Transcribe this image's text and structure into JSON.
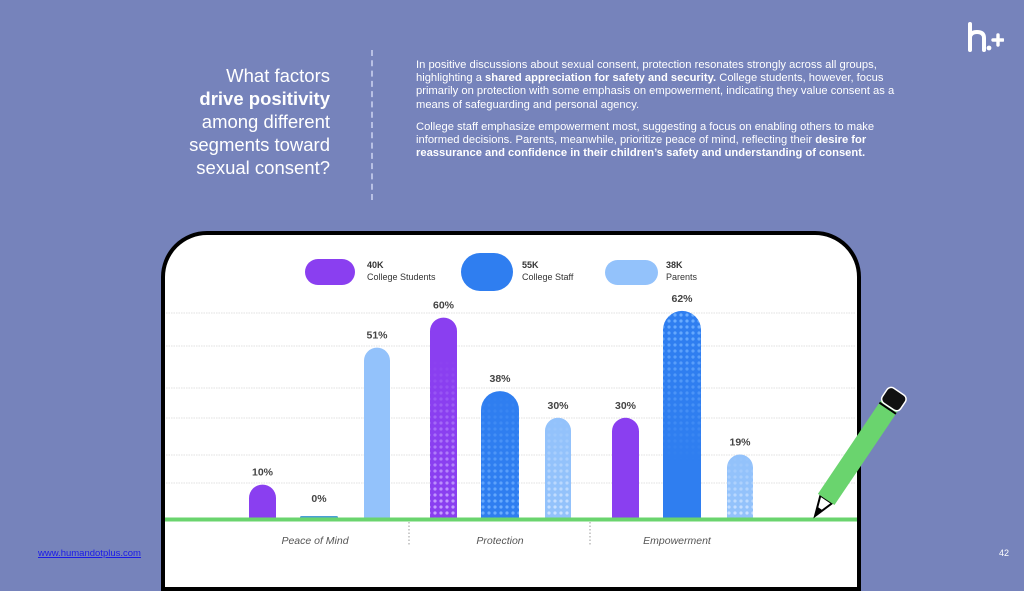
{
  "brand": {
    "logo_icon": "h-plus-logo-icon"
  },
  "question": {
    "line1": "What factors",
    "line2_bold": "drive positivity",
    "line3": "among different",
    "line4": "segments toward",
    "line5": "sexual consent?"
  },
  "summary": {
    "p1_a": "In positive discussions about sexual consent, protection resonates strongly across all groups, highlighting a ",
    "p1_bold": "shared appreciation for safety and security.",
    "p1_b": " College students, however, focus primarily on protection with some emphasis on empowerment, indicating they value consent as a means of safeguarding and personal agency.",
    "p2_a": "College staff emphasize empowerment most, suggesting a focus on enabling others to make informed decisions. Parents, meanwhile, prioritize peace of mind, reflecting their ",
    "p2_bold": "desire for reassurance and confidence in their children’s safety and understanding of consent."
  },
  "footer": {
    "link": "www.humandotplus.com",
    "page_number": "42"
  },
  "colors": {
    "background": "#7683bb",
    "college_students": "#8a3ff0",
    "college_staff": "#2f7ef0",
    "parents": "#93c2fb",
    "baseline": "#6ad46e",
    "pencil": "#6ad46e"
  },
  "chart_data": {
    "type": "bar",
    "title": "",
    "xlabel": "",
    "ylabel": "",
    "ylim": [
      0,
      62
    ],
    "grid": true,
    "legend_position": "top",
    "categories": [
      "Peace of Mind",
      "Protection",
      "Empowerment"
    ],
    "series": [
      {
        "name": "College Students",
        "count_label": "40K",
        "color": "#8a3ff0",
        "values": [
          10,
          60,
          30
        ],
        "labels": [
          "10%",
          "60%",
          "30%"
        ]
      },
      {
        "name": "College Staff",
        "count_label": "55K",
        "color": "#2f7ef0",
        "values": [
          0,
          38,
          62
        ],
        "labels": [
          "0%",
          "38%",
          "62%"
        ]
      },
      {
        "name": "Parents",
        "count_label": "38K",
        "color": "#93c2fb",
        "values": [
          51,
          30,
          19
        ],
        "labels": [
          "51%",
          "30%",
          "19%"
        ]
      }
    ]
  }
}
